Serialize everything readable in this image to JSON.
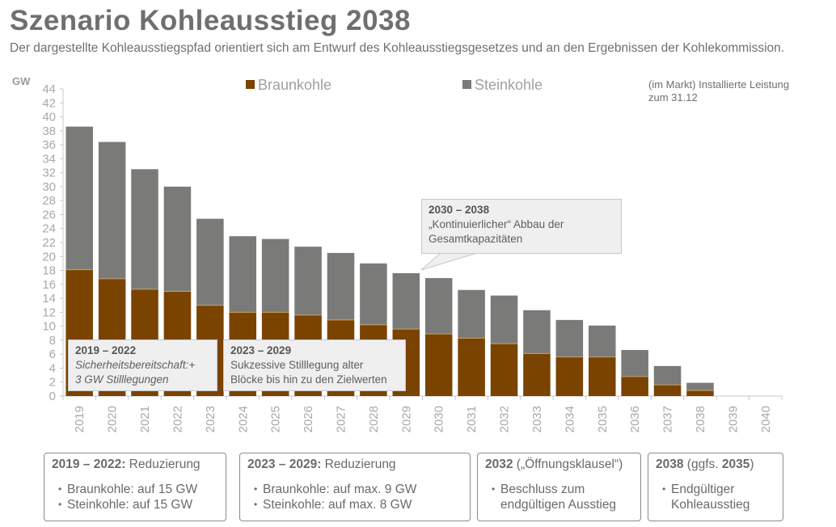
{
  "header": {
    "title": "Szenario Kohleausstieg 2038",
    "subtitle": "Der dargestellte Kohleausstiegspfad orientiert sich am Entwurf des Kohleausstiegsgesetzes und an den Ergebnissen der Kohlekommission."
  },
  "note": "(im Markt) Installierte Leistung zum 31.12",
  "colors": {
    "braunkohle": "#7a4300",
    "steinkohle": "#7a7b79",
    "axis": "#c8c8c8",
    "tick_text": "#a8a8a8"
  },
  "chart_data": {
    "type": "bar",
    "stacked": true,
    "title": "Szenario Kohleausstieg 2038",
    "xlabel": "",
    "ylabel": "GW",
    "ylim": [
      0,
      44
    ],
    "yticks": [
      0,
      2,
      4,
      6,
      8,
      10,
      12,
      14,
      16,
      18,
      20,
      22,
      24,
      26,
      28,
      30,
      32,
      34,
      36,
      38,
      40,
      42,
      44
    ],
    "grid": false,
    "legend_position": "top",
    "categories": [
      "2019",
      "2020",
      "2021",
      "2022",
      "2023",
      "2024",
      "2025",
      "2026",
      "2027",
      "2028",
      "2029",
      "2030",
      "2031",
      "2032",
      "2033",
      "2034",
      "2035",
      "2036",
      "2037",
      "2038",
      "2039",
      "2040"
    ],
    "series": [
      {
        "name": "Braunkohle",
        "values": [
          18.1,
          16.8,
          15.3,
          15.0,
          13.0,
          12.0,
          12.0,
          11.6,
          10.9,
          10.2,
          9.6,
          8.9,
          8.3,
          7.5,
          6.1,
          5.6,
          5.6,
          2.8,
          1.6,
          0.8,
          0,
          0
        ]
      },
      {
        "name": "Steinkohle",
        "values": [
          20.5,
          19.6,
          17.2,
          15.0,
          12.4,
          10.9,
          10.5,
          9.8,
          9.6,
          8.8,
          8.0,
          8.0,
          6.9,
          6.9,
          6.2,
          5.3,
          4.5,
          3.8,
          2.7,
          1.1,
          0,
          0
        ]
      }
    ]
  },
  "callouts": [
    {
      "head": "2019 – 2022",
      "line1": "Sicherheitsbereitschaft:+",
      "line2": "3 GW Stilllegungen"
    },
    {
      "head": "2023 – 2029",
      "line1": "Sukzessive Stilllegung alter",
      "line2": "Blöcke bis hin zu den Zielwerten"
    },
    {
      "head": "2030 – 2038",
      "line1": "„Kontinuierlicher“ Abbau der",
      "line2": "Gesamtkapazitäten"
    }
  ],
  "infoboxes": [
    {
      "bold": "2019 – 2022:",
      "rest": " Reduzierung",
      "bullets": [
        "Braunkohle: auf 15 GW",
        "Steinkohle: auf 15 GW"
      ]
    },
    {
      "bold": "2023 – 2029:",
      "rest": " Reduzierung",
      "bullets": [
        "Braunkohle: auf max. 9 GW",
        "Steinkohle: auf max. 8 GW"
      ]
    },
    {
      "bold": "2032",
      "rest": " („Öffnungsklausel“)",
      "bullets": [
        "Beschluss zum endgültigen Ausstieg"
      ]
    },
    {
      "bold": "2038",
      "rest": " (ggfs. ",
      "bold2": "2035",
      "rest2": ")",
      "bullets": [
        "Endgültiger Kohleausstieg"
      ]
    }
  ]
}
